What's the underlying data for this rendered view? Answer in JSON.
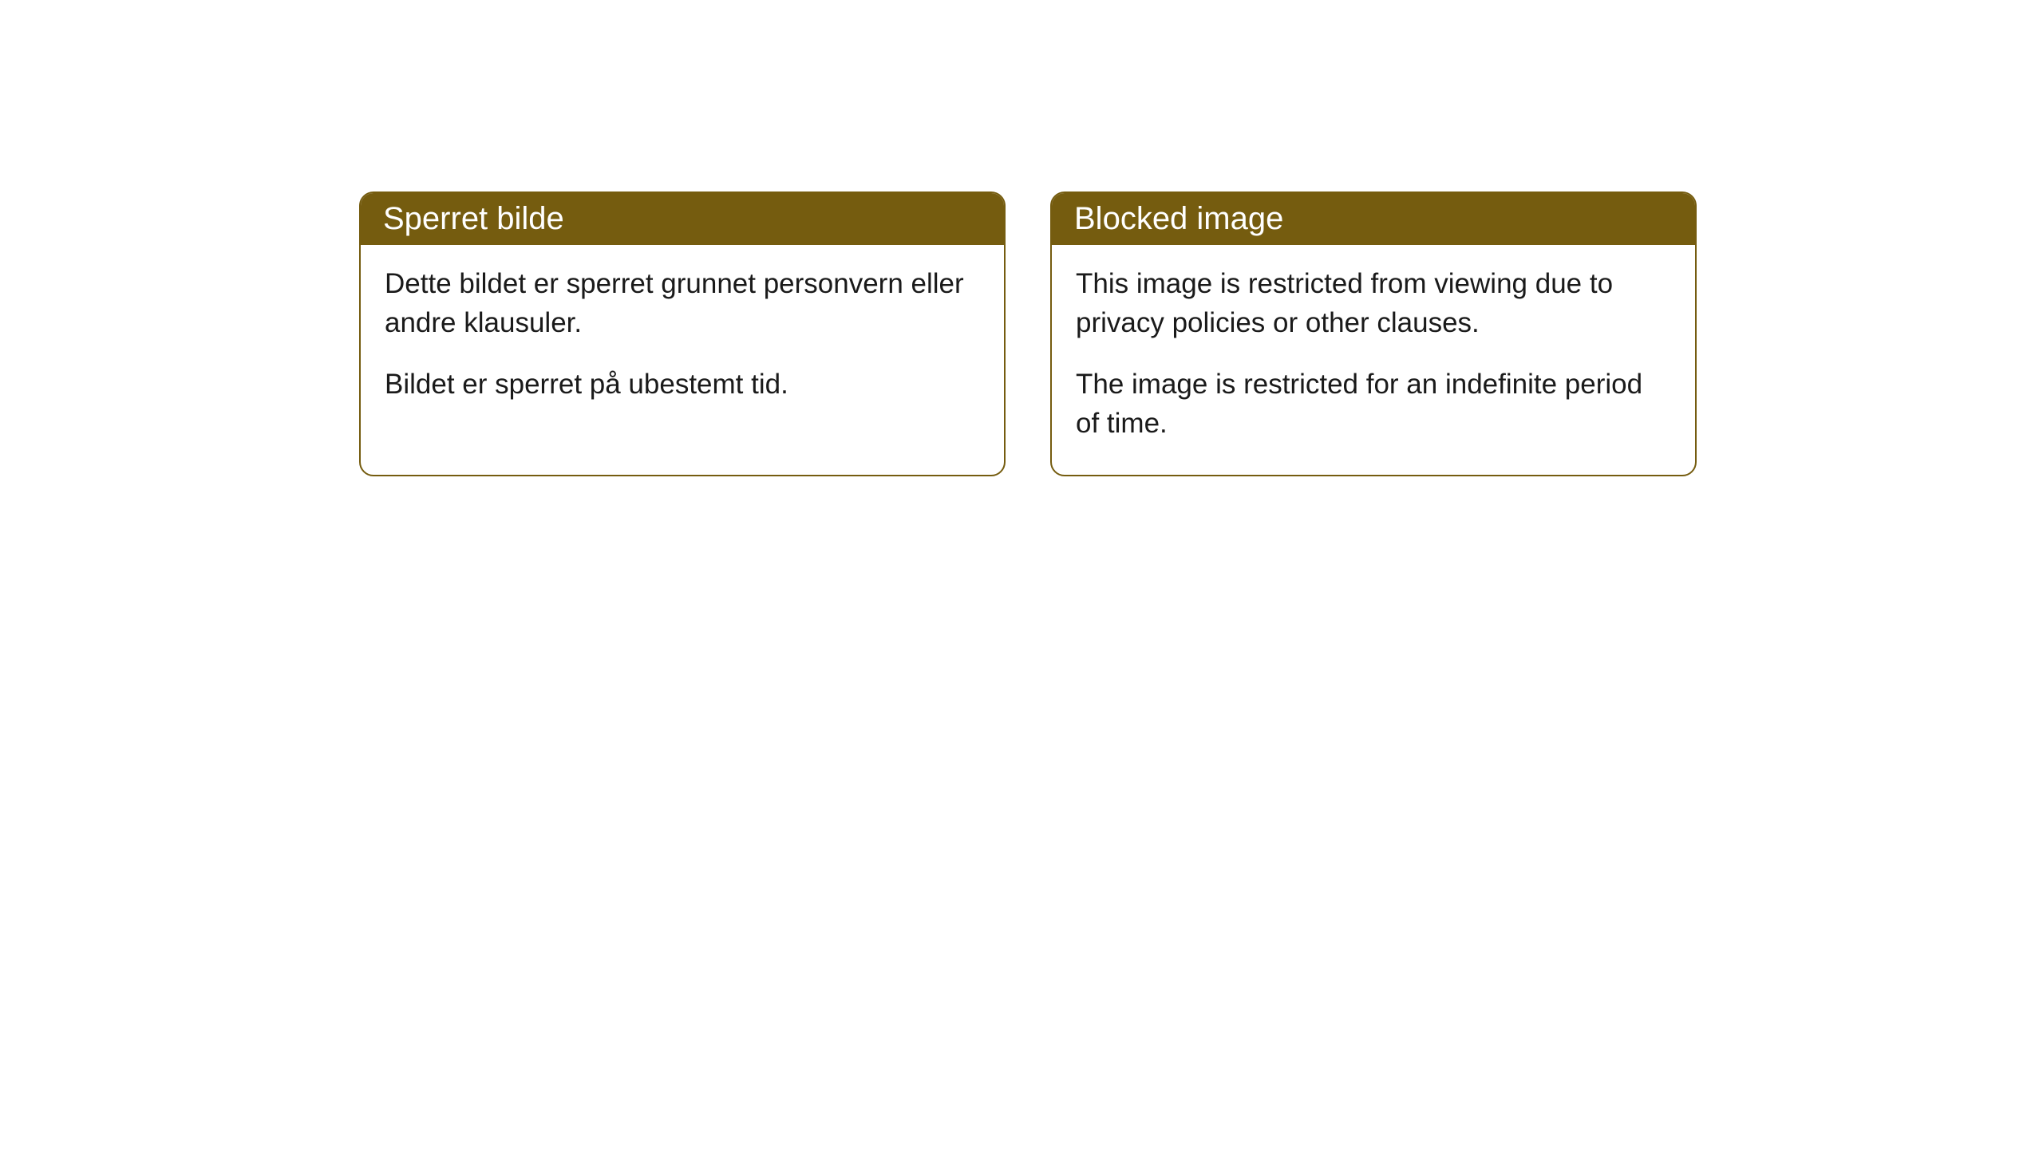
{
  "cards": [
    {
      "title": "Sperret bilde",
      "paragraph1": "Dette bildet er sperret grunnet personvern eller andre klausuler.",
      "paragraph2": "Bildet er sperret på ubestemt tid."
    },
    {
      "title": "Blocked image",
      "paragraph1": "This image is restricted from viewing due to privacy policies or other clauses.",
      "paragraph2": "The image is restricted for an indefinite period of time."
    }
  ],
  "styling": {
    "header_bg_color": "#755c0f",
    "header_text_color": "#ffffff",
    "border_color": "#755c0f",
    "body_bg_color": "#ffffff",
    "body_text_color": "#1a1a1a",
    "border_radius": 18,
    "title_fontsize": 40,
    "body_fontsize": 35
  }
}
